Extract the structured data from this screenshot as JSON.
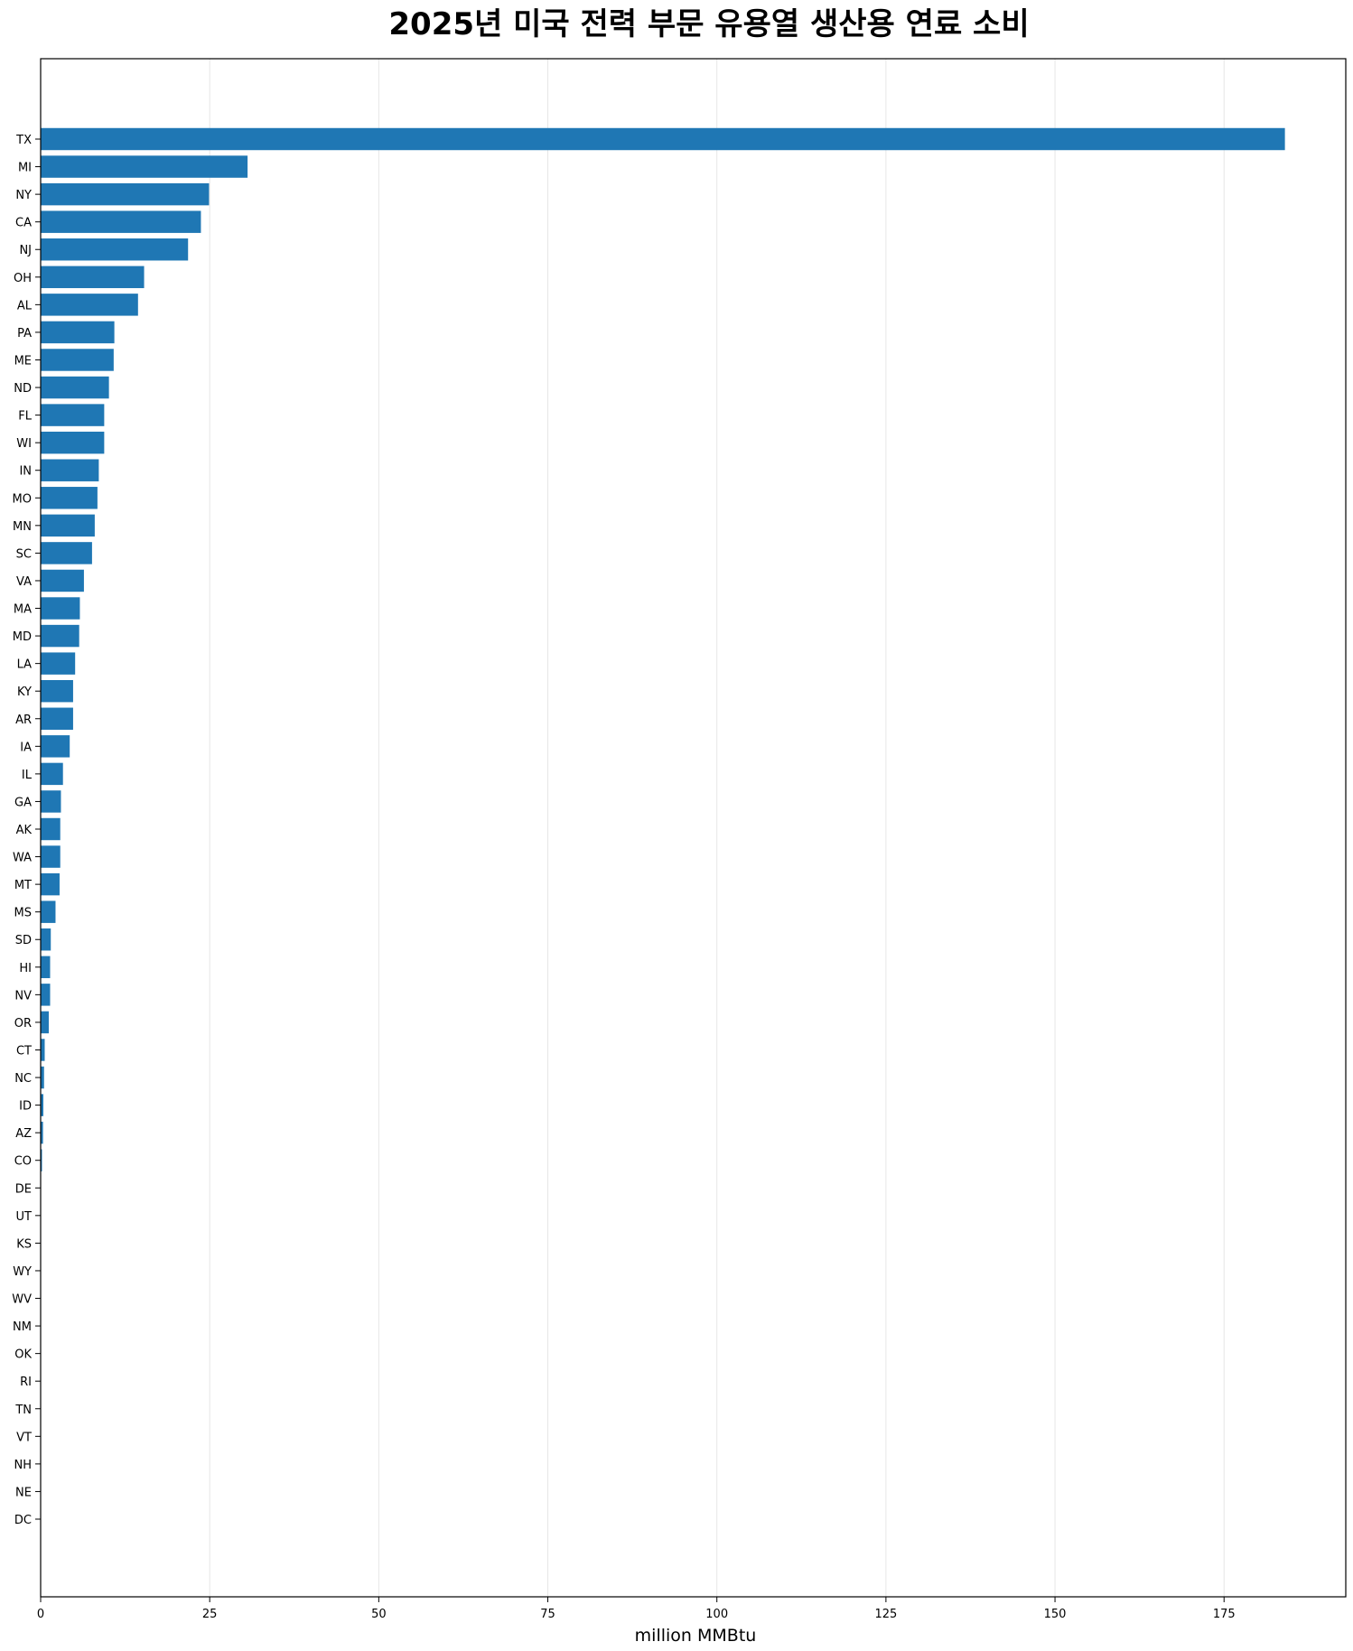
{
  "chart_data": {
    "type": "bar",
    "orientation": "horizontal",
    "title": "2025년 미국 전력 부문 유용열 생산용 연료 소비",
    "xlabel": "million MMBtu",
    "ylabel": "",
    "xlim": [
      0,
      193
    ],
    "xticks": [
      0,
      25,
      50,
      75,
      100,
      125,
      150,
      175
    ],
    "grid": "x",
    "bar_color": "#1f77b4",
    "categories": [
      "TX",
      "MI",
      "NY",
      "CA",
      "NJ",
      "OH",
      "AL",
      "PA",
      "ME",
      "ND",
      "FL",
      "WI",
      "IN",
      "MO",
      "MN",
      "SC",
      "VA",
      "MA",
      "MD",
      "LA",
      "KY",
      "AR",
      "IA",
      "IL",
      "GA",
      "AK",
      "WA",
      "MT",
      "MS",
      "SD",
      "HI",
      "NV",
      "OR",
      "CT",
      "NC",
      "ID",
      "AZ",
      "CO",
      "DE",
      "UT",
      "KS",
      "WY",
      "WV",
      "NM",
      "OK",
      "RI",
      "TN",
      "VT",
      "NH",
      "NE",
      "DC"
    ],
    "values": [
      184.0,
      30.6,
      24.9,
      23.7,
      21.8,
      15.3,
      14.4,
      10.9,
      10.8,
      10.1,
      9.4,
      9.4,
      8.6,
      8.4,
      8.0,
      7.6,
      6.4,
      5.8,
      5.7,
      5.1,
      4.8,
      4.8,
      4.3,
      3.3,
      3.0,
      2.9,
      2.9,
      2.8,
      2.2,
      1.5,
      1.4,
      1.4,
      1.2,
      0.6,
      0.5,
      0.4,
      0.35,
      0.2,
      0.05,
      0.03,
      0.02,
      0.02,
      0.01,
      0.01,
      0.01,
      0.01,
      0.01,
      0.01,
      0.01,
      0.01,
      0.01
    ]
  }
}
